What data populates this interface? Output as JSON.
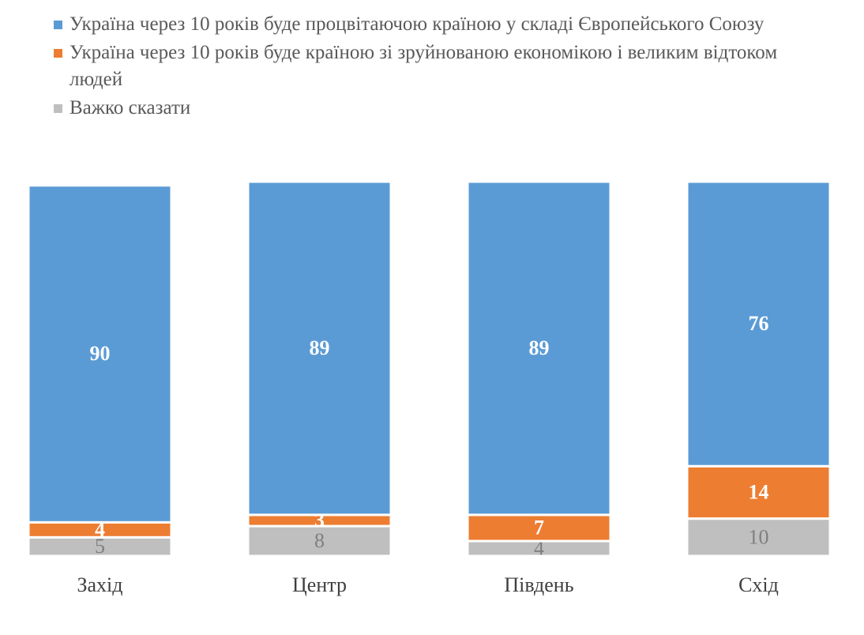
{
  "chart_data": {
    "type": "stacked_bar",
    "categories": [
      "Захід",
      "Центр",
      "Південь",
      "Схід"
    ],
    "series": [
      {
        "name": "Україна через 10 років буде процвітаючою країною у складі Європейського Союзу",
        "color": "#5b9bd5",
        "values": [
          90,
          89,
          89,
          76
        ]
      },
      {
        "name": "Україна через 10 років буде країною зі зруйнованою економікою і великим відтоком людей",
        "color": "#ed7d31",
        "values": [
          4,
          3,
          7,
          14
        ]
      },
      {
        "name": "Важко сказати",
        "color": "#bfbfbf",
        "values": [
          5,
          8,
          4,
          10
        ]
      }
    ]
  }
}
